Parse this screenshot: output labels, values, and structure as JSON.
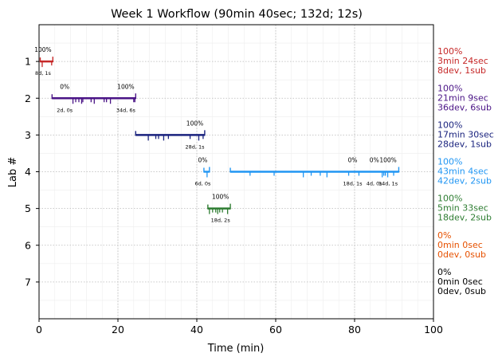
{
  "chart_data": {
    "type": "timeline",
    "title": "Week 1 Workflow (90min 40sec; 132d; 12s)",
    "xlabel": "Time (min)",
    "ylabel": "Lab #",
    "xlim": [
      0,
      100
    ],
    "ylim": [
      8,
      0
    ],
    "xticks": [
      0,
      20,
      40,
      60,
      80,
      100
    ],
    "yticks": [
      1,
      2,
      3,
      4,
      5,
      6,
      7
    ],
    "grid": true,
    "lanes": [
      {
        "lab": 1,
        "color": "#c62828",
        "summary": [
          "100%",
          "3min 24sec",
          "8dev, 1sub"
        ],
        "segments": [
          [
            0.3,
            3.5
          ]
        ],
        "ticks": [
          0.8,
          3.2
        ],
        "labels": [
          {
            "x": 1.0,
            "pct": "100%",
            "note": "8d, 1s"
          }
        ]
      },
      {
        "lab": 2,
        "color": "#4a1486",
        "summary": [
          "100%",
          "21min 9sec",
          "36dev, 6sub"
        ],
        "segments": [
          [
            3.3,
            24.5
          ]
        ],
        "ticks": [
          8.6,
          9.3,
          10.1,
          10.8,
          11.1,
          13.2,
          14.0,
          16.5,
          17.1,
          18.1,
          24.0,
          24.3
        ],
        "labels": [
          {
            "x": 6.5,
            "pct": "0%",
            "note": "2d, 0s"
          },
          {
            "x": 22.0,
            "pct": "100%",
            "note": "34d, 6s"
          }
        ]
      },
      {
        "lab": 3,
        "color": "#1a237e",
        "summary": [
          "100%",
          "17min 30sec",
          "28dev, 1sub"
        ],
        "segments": [
          [
            24.5,
            42.0
          ]
        ],
        "ticks": [
          27.7,
          29.6,
          30.3,
          31.6,
          32.8,
          38.3,
          40.5,
          41.6
        ],
        "labels": [
          {
            "x": 39.5,
            "pct": "100%",
            "note": "28d, 1s"
          }
        ]
      },
      {
        "lab": 4,
        "color": "#2196f3",
        "summary": [
          "100%",
          "43min 4sec",
          "42dev, 2sub"
        ],
        "segments": [
          [
            41.8,
            43.2
          ],
          [
            48.5,
            91.2
          ]
        ],
        "ticks": [
          42.6,
          53.5,
          59.6,
          67.0,
          69.0,
          71.3,
          73.0,
          78.5,
          81.1,
          87.0,
          87.4,
          87.8,
          88.4,
          89.9
        ],
        "labels": [
          {
            "x": 41.5,
            "pct": "0%",
            "note": "6d, 0s"
          },
          {
            "x": 79.5,
            "pct": "0%",
            "note": "18d, 1s"
          },
          {
            "x": 85.0,
            "pct": "0%",
            "note": "4d, 0s"
          },
          {
            "x": 88.5,
            "pct": "100%",
            "note": "14d, 1s"
          }
        ]
      },
      {
        "lab": 5,
        "color": "#2e7d32",
        "summary": [
          "100%",
          "5min 33sec",
          "18dev, 2sub"
        ],
        "segments": [
          [
            42.8,
            48.5
          ]
        ],
        "ticks": [
          43.2,
          44.0,
          44.8,
          45.3,
          45.8,
          46.5,
          47.8
        ],
        "labels": [
          {
            "x": 46.0,
            "pct": "100%",
            "note": "18d, 2s"
          }
        ]
      },
      {
        "lab": 6,
        "color": "#e65100",
        "summary": [
          "0%",
          "0min 0sec",
          "0dev, 0sub"
        ],
        "segments": [],
        "ticks": [],
        "labels": []
      },
      {
        "lab": 7,
        "color": "#000000",
        "summary": [
          "0%",
          "0min 0sec",
          "0dev, 0sub"
        ],
        "segments": [],
        "ticks": [],
        "labels": []
      }
    ]
  }
}
